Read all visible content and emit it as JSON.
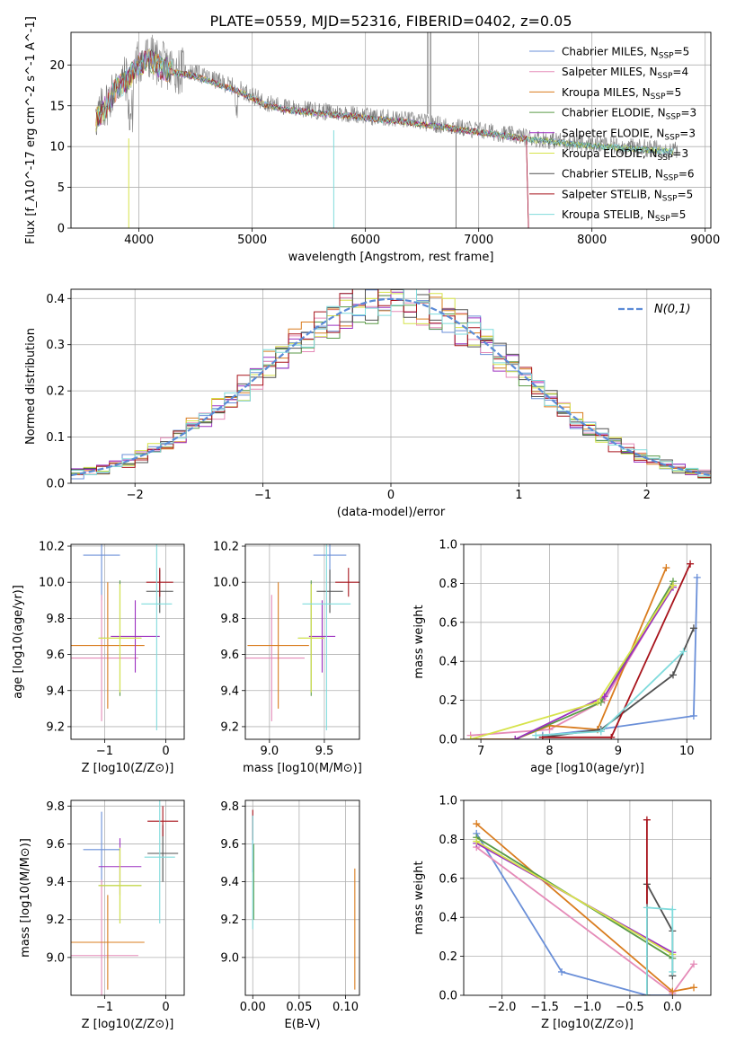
{
  "figure": {
    "title": "PLATE=0559, MJD=52316, FIBERID=0402, z=0.05"
  },
  "series_styles": [
    {
      "key": "chab_miles",
      "color": "#6a8fd8"
    },
    {
      "key": "salp_miles",
      "color": "#e58bb8"
    },
    {
      "key": "krou_miles",
      "color": "#d97c1e"
    },
    {
      "key": "chab_elodie",
      "color": "#5a9a47"
    },
    {
      "key": "salp_elodie",
      "color": "#9c30c0"
    },
    {
      "key": "krou_elodie",
      "color": "#d6e34a"
    },
    {
      "key": "chab_stelib",
      "color": "#505050"
    },
    {
      "key": "salp_stelib",
      "color": "#a8141c"
    },
    {
      "key": "krou_stelib",
      "color": "#7fdbdc"
    }
  ],
  "chart_data": [
    {
      "id": "spectrum",
      "type": "line",
      "xlabel": "wavelength [Angstrom, rest frame]",
      "ylabel": "Flux [f_λ10^-17 erg cm^-2 s^-1 A^-1]",
      "xlim": [
        3400,
        9050
      ],
      "ylim": [
        0,
        24
      ],
      "xticks": [
        4000,
        5000,
        6000,
        7000,
        8000,
        9000
      ],
      "yticks": [
        0,
        5,
        10,
        15,
        20
      ],
      "legend_position": "top-right",
      "legend": [
        {
          "name": "Chabrier MILES",
          "nssp": "5"
        },
        {
          "name": "Salpeter MILES",
          "nssp": "4"
        },
        {
          "name": "Kroupa MILES",
          "nssp": "5"
        },
        {
          "name": "Chabrier ELODIE",
          "nssp": "3"
        },
        {
          "name": "Salpeter ELODIE",
          "nssp": "3"
        },
        {
          "name": "Kroupa ELODIE",
          "nssp": "3"
        },
        {
          "name": "Chabrier STELIB",
          "nssp": "6"
        },
        {
          "name": "Salpeter STELIB",
          "nssp": "5"
        },
        {
          "name": "Kroupa STELIB",
          "nssp": "5"
        }
      ],
      "data_curve": {
        "x": [
          3620,
          3700,
          3800,
          3900,
          4000,
          4100,
          4200,
          4300,
          4500,
          4700,
          4900,
          5100,
          5300,
          5500,
          5700,
          5900,
          6100,
          6300,
          6500,
          6700,
          6900,
          7100,
          7300,
          7500,
          7700,
          7900,
          8100,
          8300,
          8500,
          8700
        ],
        "y": [
          13.5,
          15.0,
          17.5,
          18.5,
          20.5,
          21.0,
          20.0,
          19.5,
          19.0,
          18.0,
          17.0,
          15.5,
          14.8,
          14.5,
          14.2,
          14.0,
          13.6,
          13.4,
          13.0,
          12.6,
          12.2,
          11.8,
          11.4,
          11.0,
          10.7,
          10.4,
          10.2,
          10.0,
          9.8,
          9.6
        ]
      }
    },
    {
      "id": "residuals",
      "type": "line",
      "xlabel": "(data-model)/error",
      "ylabel": "Normed distribution",
      "xlim": [
        -2.5,
        2.5
      ],
      "ylim": [
        0,
        0.42
      ],
      "xticks": [
        -2,
        -1,
        0,
        1,
        2
      ],
      "yticks": [
        0.0,
        0.1,
        0.2,
        0.3,
        0.4
      ],
      "legend_position": "top-right",
      "legend": [
        {
          "name": "N(0,1)",
          "color": "#5b8bd6"
        }
      ]
    },
    {
      "id": "age_vs_Z",
      "type": "scatter",
      "xlabel": "Z [log10(Z/Z⊙)]",
      "ylabel": "age [log10(age/yr)]",
      "xlim": [
        -1.55,
        0.3
      ],
      "ylim": [
        9.13,
        10.21
      ],
      "xticks": [
        -1,
        0
      ],
      "yticks": [
        9.2,
        9.4,
        9.6,
        9.8,
        10.0,
        10.2
      ],
      "points": [
        {
          "x": -1.05,
          "xerr": 0.3,
          "y": 10.15,
          "yerr": 0.25,
          "color": "#6a8fd8"
        },
        {
          "x": -1.05,
          "xerr": 0.6,
          "y": 9.58,
          "yerr": 0.35,
          "color": "#e58bb8"
        },
        {
          "x": -0.95,
          "xerr": 0.6,
          "y": 9.65,
          "yerr": 0.35,
          "color": "#d97c1e"
        },
        {
          "x": -0.75,
          "xerr": 0.35,
          "y": 9.69,
          "yerr": 0.32,
          "color": "#5a9a47"
        },
        {
          "x": -0.5,
          "xerr": 0.4,
          "y": 9.7,
          "yerr": 0.2,
          "color": "#9c30c0"
        },
        {
          "x": -0.75,
          "xerr": 0.35,
          "y": 9.69,
          "yerr": 0.3,
          "color": "#d6e34a"
        },
        {
          "x": -0.1,
          "xerr": 0.22,
          "y": 9.95,
          "yerr": 0.12,
          "color": "#505050"
        },
        {
          "x": -0.1,
          "xerr": 0.22,
          "y": 10.0,
          "yerr": 0.08,
          "color": "#a8141c"
        },
        {
          "x": -0.15,
          "xerr": 0.25,
          "y": 9.88,
          "yerr": 0.7,
          "color": "#7fdbdc"
        }
      ]
    },
    {
      "id": "age_vs_mass",
      "type": "scatter",
      "xlabel": "mass [log10(M/M⊙)]",
      "ylabel": "",
      "xlim": [
        8.78,
        9.82
      ],
      "ylim": [
        9.13,
        10.21
      ],
      "xticks": [
        9.0,
        9.5
      ],
      "yticks": [
        9.2,
        9.4,
        9.6,
        9.8,
        10.0,
        10.2
      ],
      "points": [
        {
          "x": 9.55,
          "xerr": 0.15,
          "y": 10.15,
          "yerr": 0.25,
          "color": "#6a8fd8"
        },
        {
          "x": 9.02,
          "xerr": 0.3,
          "y": 9.58,
          "yerr": 0.35,
          "color": "#e58bb8"
        },
        {
          "x": 9.08,
          "xerr": 0.28,
          "y": 9.65,
          "yerr": 0.35,
          "color": "#d97c1e"
        },
        {
          "x": 9.38,
          "xerr": 0.12,
          "y": 9.69,
          "yerr": 0.32,
          "color": "#5a9a47"
        },
        {
          "x": 9.48,
          "xerr": 0.12,
          "y": 9.7,
          "yerr": 0.2,
          "color": "#9c30c0"
        },
        {
          "x": 9.38,
          "xerr": 0.12,
          "y": 9.69,
          "yerr": 0.3,
          "color": "#d6e34a"
        },
        {
          "x": 9.55,
          "xerr": 0.12,
          "y": 9.95,
          "yerr": 0.12,
          "color": "#505050"
        },
        {
          "x": 9.72,
          "xerr": 0.12,
          "y": 10.0,
          "yerr": 0.08,
          "color": "#a8141c"
        },
        {
          "x": 9.52,
          "xerr": 0.22,
          "y": 9.88,
          "yerr": 0.7,
          "color": "#7fdbdc"
        }
      ]
    },
    {
      "id": "mass_weight_vs_age",
      "type": "line",
      "xlabel": "age [log10(age/yr)]",
      "ylabel": "mass weight",
      "xlim": [
        6.75,
        10.35
      ],
      "ylim": [
        0,
        1.0
      ],
      "xticks": [
        7,
        8,
        9,
        10
      ],
      "yticks": [
        0.0,
        0.2,
        0.4,
        0.6,
        0.8,
        1.0
      ],
      "series": [
        {
          "key": "chab_miles",
          "x": [
            7.9,
            8.7,
            10.1,
            10.15
          ],
          "y": [
            0.02,
            0.05,
            0.12,
            0.83
          ]
        },
        {
          "key": "salp_miles",
          "x": [
            6.85,
            8.0,
            8.8,
            9.8
          ],
          "y": [
            0.02,
            0.05,
            0.2,
            0.79
          ]
        },
        {
          "key": "krou_miles",
          "x": [
            6.85,
            7.5,
            8.0,
            8.7,
            9.7
          ],
          "y": [
            0.0,
            0.0,
            0.07,
            0.05,
            0.88
          ]
        },
        {
          "key": "chab_elodie",
          "x": [
            7.5,
            8.75,
            9.8
          ],
          "y": [
            0.0,
            0.19,
            0.81
          ]
        },
        {
          "key": "salp_elodie",
          "x": [
            7.5,
            8.8,
            9.8
          ],
          "y": [
            0.0,
            0.22,
            0.78
          ]
        },
        {
          "key": "krou_elodie",
          "x": [
            6.85,
            8.7,
            9.8
          ],
          "y": [
            0.0,
            0.19,
            0.79
          ]
        },
        {
          "key": "chab_stelib",
          "x": [
            7.9,
            8.75,
            9.8,
            10.1
          ],
          "y": [
            0.01,
            0.05,
            0.33,
            0.57
          ]
        },
        {
          "key": "salp_stelib",
          "x": [
            7.9,
            8.9,
            10.05
          ],
          "y": [
            0.01,
            0.01,
            0.9
          ]
        },
        {
          "key": "krou_stelib",
          "x": [
            7.8,
            8.75,
            9.95
          ],
          "y": [
            0.02,
            0.04,
            0.45
          ]
        }
      ]
    },
    {
      "id": "mass_vs_Z",
      "type": "scatter",
      "xlabel": "Z [log10(Z/Z⊙)]",
      "ylabel": "mass [log10(M/M⊙)]",
      "xlim": [
        -1.55,
        0.3
      ],
      "ylim": [
        8.8,
        9.83
      ],
      "xticks": [
        -1,
        0
      ],
      "yticks": [
        9.0,
        9.2,
        9.4,
        9.6,
        9.8
      ],
      "points": [
        {
          "x": -1.05,
          "xerr": 0.3,
          "y": 9.57,
          "yerr": 0.2,
          "color": "#6a8fd8"
        },
        {
          "x": -1.05,
          "xerr": 0.6,
          "y": 9.01,
          "yerr": 0.4,
          "color": "#e58bb8"
        },
        {
          "x": -0.95,
          "xerr": 0.6,
          "y": 9.08,
          "yerr": 0.25,
          "color": "#d97c1e"
        },
        {
          "x": -0.75,
          "xerr": 0.35,
          "y": 9.38,
          "yerr": 0.2,
          "color": "#5a9a47"
        },
        {
          "x": -0.75,
          "xerr": 0.35,
          "y": 9.48,
          "yerr": 0.15,
          "color": "#9c30c0"
        },
        {
          "x": -0.75,
          "xerr": 0.35,
          "y": 9.38,
          "yerr": 0.2,
          "color": "#d6e34a"
        },
        {
          "x": -0.05,
          "xerr": 0.25,
          "y": 9.55,
          "yerr": 0.15,
          "color": "#505050"
        },
        {
          "x": -0.05,
          "xerr": 0.25,
          "y": 9.72,
          "yerr": 0.08,
          "color": "#a8141c"
        },
        {
          "x": -0.1,
          "xerr": 0.25,
          "y": 9.53,
          "yerr": 0.35,
          "color": "#7fdbdc"
        }
      ]
    },
    {
      "id": "mass_vs_ebv",
      "type": "scatter",
      "xlabel": "E(B-V)",
      "ylabel": "",
      "xlim": [
        -0.008,
        0.115
      ],
      "ylim": [
        8.8,
        9.83
      ],
      "xticks": [
        0.0,
        0.05,
        0.1
      ],
      "yticks": [
        9.0,
        9.2,
        9.4,
        9.6,
        9.8
      ],
      "points": [
        {
          "x": 0.0,
          "xerr": 0.0,
          "y": 9.6,
          "yerr": 0.15,
          "color": "#6a8fd8"
        },
        {
          "x": 0.001,
          "xerr": 0.0,
          "y": 9.4,
          "yerr": 0.2,
          "color": "#5a9a47"
        },
        {
          "x": 0.0,
          "xerr": 0.0,
          "y": 9.7,
          "yerr": 0.08,
          "color": "#a8141c"
        },
        {
          "x": 0.0,
          "xerr": 0.0,
          "y": 9.45,
          "yerr": 0.3,
          "color": "#7fdbdc"
        },
        {
          "x": 0.11,
          "xerr": 0.0,
          "y": 9.15,
          "yerr": 0.32,
          "color": "#d97c1e"
        }
      ]
    },
    {
      "id": "mass_weight_vs_Z",
      "type": "line",
      "xlabel": "Z [log10(Z/Z⊙)]",
      "ylabel": "mass weight",
      "xlim": [
        -2.45,
        0.45
      ],
      "ylim": [
        0,
        1.0
      ],
      "xticks": [
        -2.0,
        -1.5,
        -1.0,
        -0.5,
        0.0
      ],
      "yticks": [
        0.0,
        0.2,
        0.4,
        0.6,
        0.8,
        1.0
      ],
      "series": [
        {
          "key": "chab_miles",
          "x": [
            -2.3,
            -1.3,
            -0.3,
            0.0
          ],
          "y": [
            0.83,
            0.12,
            0.0,
            0.0
          ]
        },
        {
          "key": "salp_miles",
          "x": [
            -2.3,
            0.0,
            0.25
          ],
          "y": [
            0.76,
            0.01,
            0.16
          ]
        },
        {
          "key": "krou_miles",
          "x": [
            -2.3,
            0.0,
            0.25
          ],
          "y": [
            0.88,
            0.02,
            0.04
          ]
        },
        {
          "key": "chab_elodie",
          "x": [
            -2.3,
            0.0
          ],
          "y": [
            0.81,
            0.19
          ]
        },
        {
          "key": "salp_elodie",
          "x": [
            -2.3,
            0.0
          ],
          "y": [
            0.78,
            0.22
          ]
        },
        {
          "key": "krou_elodie",
          "x": [
            -2.3,
            0.0
          ],
          "y": [
            0.79,
            0.21
          ]
        },
        {
          "key": "chab_stelib",
          "x": [
            -0.3,
            -0.3,
            0.0,
            0.0
          ],
          "y": [
            0.0,
            0.57,
            0.33,
            0.1
          ]
        },
        {
          "key": "salp_stelib",
          "x": [
            -0.3,
            -0.3
          ],
          "y": [
            0.0,
            0.9
          ]
        },
        {
          "key": "krou_stelib",
          "x": [
            -0.3,
            -0.3,
            0.0,
            0.0
          ],
          "y": [
            0.0,
            0.45,
            0.44,
            0.12
          ]
        }
      ]
    }
  ]
}
